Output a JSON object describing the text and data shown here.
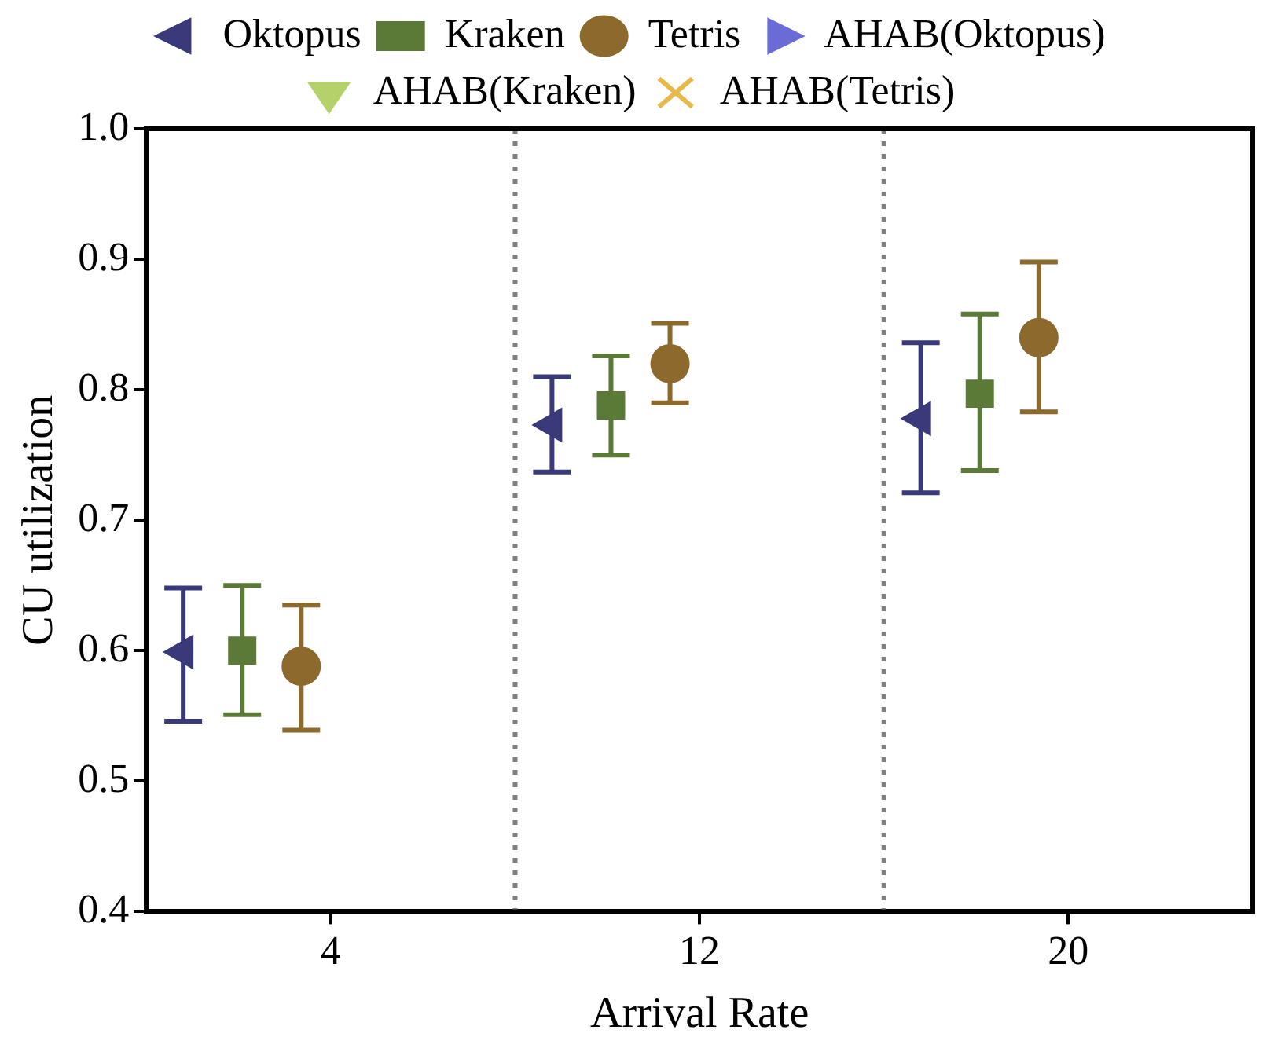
{
  "chart_data": {
    "type": "scatter",
    "xlabel": "Arrival Rate",
    "ylabel": "CU utilization",
    "categories": [
      "4",
      "12",
      "20"
    ],
    "ylim": [
      0.4,
      1.0
    ],
    "yticks": [
      {
        "value": 0.4,
        "label": "0.4"
      },
      {
        "value": 0.5,
        "label": "0.5"
      },
      {
        "value": 0.6,
        "label": "0.6"
      },
      {
        "value": 0.7,
        "label": "0.7"
      },
      {
        "value": 0.8,
        "label": "0.8"
      },
      {
        "value": 0.9,
        "label": "0.9"
      },
      {
        "value": 1.0,
        "label": "1.0"
      }
    ],
    "grid": "x",
    "legend": "top",
    "series": [
      {
        "name": "Oktopus",
        "color": "#3a3a7a",
        "marker": "triangle-left",
        "values": [
          0.599,
          0.773,
          0.778
        ],
        "errors": [
          [
            0.546,
            0.648
          ],
          [
            0.737,
            0.81
          ],
          [
            0.721,
            0.836
          ]
        ]
      },
      {
        "name": "Kraken",
        "color": "#5c7a37",
        "marker": "square",
        "values": [
          0.6,
          0.788,
          0.797
        ],
        "errors": [
          [
            0.551,
            0.65
          ],
          [
            0.75,
            0.826
          ],
          [
            0.738,
            0.858
          ]
        ]
      },
      {
        "name": "Tetris",
        "color": "#8c6a2e",
        "marker": "circle",
        "values": [
          0.588,
          0.82,
          0.84
        ],
        "errors": [
          [
            0.539,
            0.635
          ],
          [
            0.79,
            0.851
          ],
          [
            0.783,
            0.898
          ]
        ]
      },
      {
        "name": "AHAB(Oktopus)",
        "color": "#6b6bd6",
        "marker": "triangle-right",
        "values": [
          null,
          null,
          null
        ]
      },
      {
        "name": "AHAB(Kraken)",
        "color": "#b5d16a",
        "marker": "triangle-down",
        "values": [
          null,
          null,
          null
        ]
      },
      {
        "name": "AHAB(Tetris)",
        "color": "#e8b84a",
        "marker": "cross",
        "values": [
          null,
          null,
          null
        ]
      }
    ]
  }
}
